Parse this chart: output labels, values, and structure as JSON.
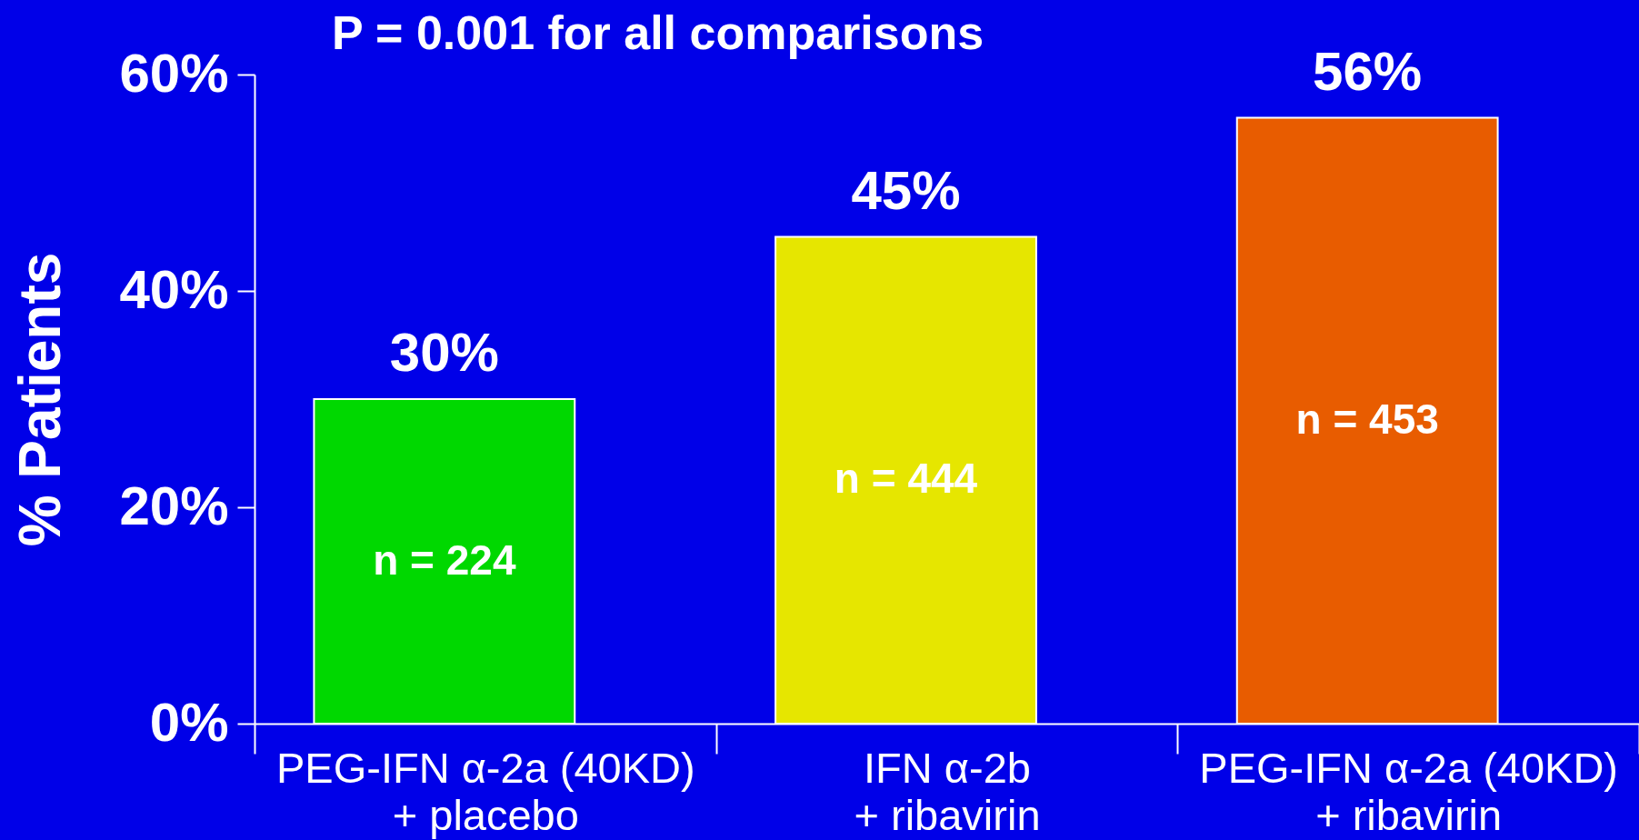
{
  "chart_data": {
    "type": "bar",
    "title": "P = 0.001 for all comparisons",
    "ylabel": "% Patients",
    "categories": [
      "PEG-IFN α-2a (40KD)\n+ placebo",
      "IFN α-2b\n+ ribavirin",
      "PEG-IFN α-2a (40KD)\n+ ribavirin"
    ],
    "values": [
      30,
      45,
      56
    ],
    "colors": [
      "#00d800",
      "#e6e600",
      "#e85c00"
    ],
    "value_labels": [
      "30%",
      "45%",
      "56%"
    ],
    "ylim": [
      0,
      60
    ],
    "yticks": [
      {
        "value": 0,
        "label": "0%"
      },
      {
        "value": 20,
        "label": "20%"
      },
      {
        "value": 40,
        "label": "40%"
      },
      {
        "value": 60,
        "label": "60%"
      }
    ],
    "grid": false,
    "annotations": [
      "n = 224",
      "n = 444",
      "n = 453"
    ]
  }
}
